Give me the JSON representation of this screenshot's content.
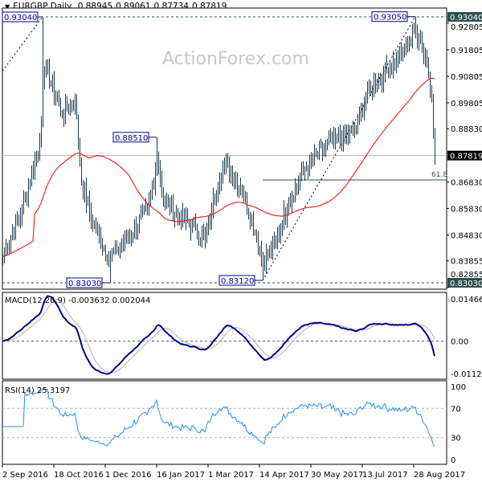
{
  "header": {
    "arrow_icon": "triangle-down-icon",
    "symbol": "EURGBP,Daily",
    "open": "0.88945",
    "high": "0.89061",
    "low": "0.87734",
    "close": "0.87819"
  },
  "watermark": "ActionForex.com",
  "chart_data": [
    {
      "type": "ohlc-bar",
      "panel": "price",
      "symbol": "EURGBP",
      "timeframe": "Daily",
      "ylim": [
        0.82788,
        0.93373
      ],
      "y_ticks": [
        "0.92805",
        "0.91805",
        "0.90805",
        "0.89805",
        "0.88830",
        "0.86830",
        "0.85830",
        "0.84830",
        "0.83855",
        "0.82855"
      ],
      "highlighted_levels": [
        {
          "label": "0.93040",
          "value": 0.9304,
          "color": "#2f4f4f"
        },
        {
          "label": "0.87819",
          "value": 0.87819,
          "color": "#000000"
        },
        {
          "label": "0.83030",
          "value": 0.8303,
          "color": "#2f4f4f"
        }
      ],
      "swing_labels": [
        {
          "label": "0.93040",
          "date": "2016-10-07",
          "value": 0.9304
        },
        {
          "label": "0.88510",
          "date": "2017-01-16",
          "value": 0.8851
        },
        {
          "label": "0.83030",
          "date": "2016-12-06",
          "value": 0.8303
        },
        {
          "label": "0.83120",
          "date": "2017-04-18",
          "value": 0.8312
        },
        {
          "label": "0.93050",
          "date": "2017-08-29",
          "value": 0.9305
        }
      ],
      "fibonacci": {
        "label": "61.8",
        "value": 0.869,
        "from_date": "2017-04-18"
      },
      "trendlines": [
        {
          "from": [
            "2016-09-02",
            0.91
          ],
          "to": [
            "2016-10-07",
            0.9304
          ]
        },
        {
          "from": [
            "2017-04-18",
            0.8312
          ],
          "to": [
            "2017-08-29",
            0.9305
          ]
        }
      ],
      "moving_average_color": "#ff0000",
      "bar_color": "#1b3a4f",
      "approximate_closes": [
        [
          "2016-09-02",
          0.84
        ],
        [
          "2016-09-20",
          0.858
        ],
        [
          "2016-10-05",
          0.883
        ],
        [
          "2016-10-07",
          0.905
        ],
        [
          "2016-10-11",
          0.911
        ],
        [
          "2016-10-25",
          0.894
        ],
        [
          "2016-11-04",
          0.899
        ],
        [
          "2016-11-10",
          0.868
        ],
        [
          "2016-11-21",
          0.853
        ],
        [
          "2016-12-05",
          0.84
        ],
        [
          "2016-12-12",
          0.843
        ],
        [
          "2016-12-22",
          0.848
        ],
        [
          "2017-01-06",
          0.858
        ],
        [
          "2017-01-13",
          0.872
        ],
        [
          "2017-01-16",
          0.878
        ],
        [
          "2017-01-20",
          0.862
        ],
        [
          "2017-02-03",
          0.855
        ],
        [
          "2017-02-17",
          0.851
        ],
        [
          "2017-02-27",
          0.846
        ],
        [
          "2017-03-03",
          0.858
        ],
        [
          "2017-03-10",
          0.87
        ],
        [
          "2017-03-16",
          0.875
        ],
        [
          "2017-03-30",
          0.865
        ],
        [
          "2017-04-12",
          0.848
        ],
        [
          "2017-04-18",
          0.838
        ],
        [
          "2017-04-28",
          0.846
        ],
        [
          "2017-05-10",
          0.861
        ],
        [
          "2017-05-24",
          0.873
        ],
        [
          "2017-06-09",
          0.881
        ],
        [
          "2017-06-20",
          0.884
        ],
        [
          "2017-07-07",
          0.888
        ],
        [
          "2017-07-12",
          0.895
        ],
        [
          "2017-07-20",
          0.9035
        ],
        [
          "2017-08-01",
          0.909
        ],
        [
          "2017-08-16",
          0.916
        ],
        [
          "2017-08-29",
          0.926
        ],
        [
          "2017-09-01",
          0.922
        ],
        [
          "2017-09-07",
          0.913
        ],
        [
          "2017-09-12",
          0.9
        ],
        [
          "2017-09-14",
          0.87819
        ]
      ]
    },
    {
      "type": "line",
      "panel": "macd",
      "label": "MACD(12,26,9) -0.003632 0.002044",
      "ylim": [
        -0.011202,
        0.014661
      ],
      "y_ticks": [
        "0.014661",
        "0.00",
        "-0.011202"
      ],
      "main_color": "#00008b",
      "signal_color": "#b0b0b0"
    },
    {
      "type": "line",
      "panel": "rsi",
      "label": "RSI(14) 25.3197",
      "ylim": [
        0,
        100
      ],
      "y_ticks": [
        "100",
        "70",
        "30",
        "0"
      ],
      "levels": [
        70,
        30
      ],
      "color": "#1e90ff"
    }
  ],
  "x_axis": {
    "start_date": "2016-09-02",
    "tick_labels": [
      {
        "label": "2 Sep 2016",
        "date": "2016-09-02"
      },
      {
        "label": "18 Oct 2016",
        "date": "2016-10-18"
      },
      {
        "label": "1 Dec 2016",
        "date": "2016-12-01"
      },
      {
        "label": "16 Jan 2017",
        "date": "2017-01-16"
      },
      {
        "label": "1 Mar 2017",
        "date": "2017-03-01"
      },
      {
        "label": "14 Apr 2017",
        "date": "2017-04-14"
      },
      {
        "label": "30 May 2017",
        "date": "2017-05-30"
      },
      {
        "label": "13 Jul 2017",
        "date": "2017-07-13"
      },
      {
        "label": "28 Aug 2017",
        "date": "2017-08-28"
      }
    ]
  }
}
